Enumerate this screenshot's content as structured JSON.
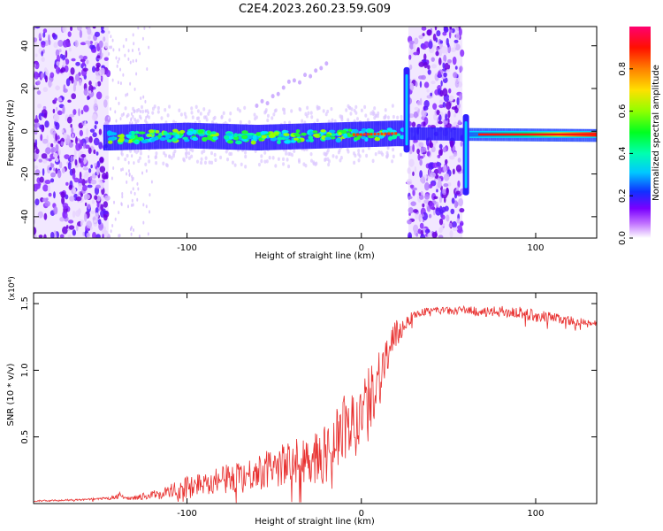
{
  "title": "C2E4.2023.260.23.59.G09",
  "colors": {
    "snr_line": "#e8302f",
    "axes": "#000000",
    "spectro_core": "#ff0000",
    "spectro_scatter": "#6a00e0"
  },
  "chart_data": [
    {
      "type": "heatmap",
      "title": "C2E4.2023.260.23.59.G09",
      "xlabel": "Height of straight line (km)",
      "ylabel": "Frequency (Hz)",
      "xlim": [
        -188,
        135
      ],
      "ylim": [
        -50,
        49
      ],
      "x_ticks": [
        -100,
        0,
        100
      ],
      "x_tick_labels": [
        "-100",
        "0",
        "100"
      ],
      "y_ticks": [
        -40,
        -20,
        0,
        20,
        40
      ],
      "y_tick_labels": [
        "-40",
        "-20",
        "0",
        "20",
        "40"
      ],
      "colorbar": {
        "label": "Normalized spectral amplitude",
        "range": [
          0,
          1
        ],
        "ticks": [
          0.0,
          0.2,
          0.4,
          0.6,
          0.8
        ],
        "tick_labels": [
          "0.0",
          "0.2",
          "0.4",
          "0.6",
          "0.8"
        ],
        "scale": "rainbow (white-violet-blue-cyan-green-yellow-red-magenta)"
      },
      "features": {
        "dense_noise_regions_km": [
          [
            -188,
            -145
          ],
          [
            27,
            58
          ]
        ],
        "carrier_track": [
          {
            "x": -145,
            "y": -3.0
          },
          {
            "x": -100,
            "y": -2.0
          },
          {
            "x": -60,
            "y": -3.0
          },
          {
            "x": -20,
            "y": -2.0
          },
          {
            "x": 20,
            "y": -1.0
          },
          {
            "x": 60,
            "y": -1.5
          },
          {
            "x": 135,
            "y": -2.0
          }
        ],
        "faint_branch": [
          {
            "x": -60,
            "y": 12
          },
          {
            "x": -20,
            "y": 32
          }
        ],
        "vertical_spikes": [
          {
            "x": 26,
            "y_range": [
              -10,
              30
            ]
          },
          {
            "x": 60,
            "y_range": [
              -30,
              8
            ]
          }
        ]
      }
    },
    {
      "type": "line",
      "xlabel": "Height of straight line (km)",
      "ylabel": "SNR (10 * v/v)",
      "y_multiplier": "(x10⁴)",
      "xlim": [
        -188,
        135
      ],
      "ylim": [
        0,
        1.58
      ],
      "x_ticks": [
        -100,
        0,
        100
      ],
      "x_tick_labels": [
        "-100",
        "0",
        "100"
      ],
      "y_ticks": [
        0.5,
        1.0,
        1.5
      ],
      "y_tick_labels": [
        "0.5",
        "1.0",
        "1.5"
      ],
      "series": [
        {
          "x": [
            -188,
            -160,
            -145,
            -138,
            -135,
            -130,
            -120,
            -110,
            -100,
            -90,
            -80,
            -70,
            -60,
            -50,
            -40,
            -30,
            -20,
            -15,
            -10,
            -5,
            0,
            5,
            10,
            15,
            20,
            25,
            30,
            35,
            40,
            50,
            60,
            70,
            80,
            90,
            100,
            110,
            120,
            130,
            135
          ],
          "y": [
            0.02,
            0.03,
            0.04,
            0.07,
            0.04,
            0.05,
            0.07,
            0.1,
            0.14,
            0.18,
            0.2,
            0.22,
            0.26,
            0.3,
            0.34,
            0.38,
            0.42,
            0.55,
            0.6,
            0.65,
            0.72,
            0.85,
            1.0,
            1.15,
            1.28,
            1.36,
            1.42,
            1.44,
            1.46,
            1.45,
            1.46,
            1.44,
            1.45,
            1.44,
            1.42,
            1.4,
            1.38,
            1.36,
            1.36
          ],
          "jitter": [
            0.01,
            0.01,
            0.02,
            0.04,
            0.02,
            0.03,
            0.05,
            0.1,
            0.15,
            0.15,
            0.18,
            0.2,
            0.22,
            0.25,
            0.28,
            0.32,
            0.38,
            0.42,
            0.45,
            0.4,
            0.38,
            0.4,
            0.42,
            0.3,
            0.2,
            0.1,
            0.06,
            0.05,
            0.04,
            0.05,
            0.05,
            0.06,
            0.07,
            0.08,
            0.08,
            0.07,
            0.06,
            0.04,
            0.03
          ]
        }
      ]
    }
  ]
}
